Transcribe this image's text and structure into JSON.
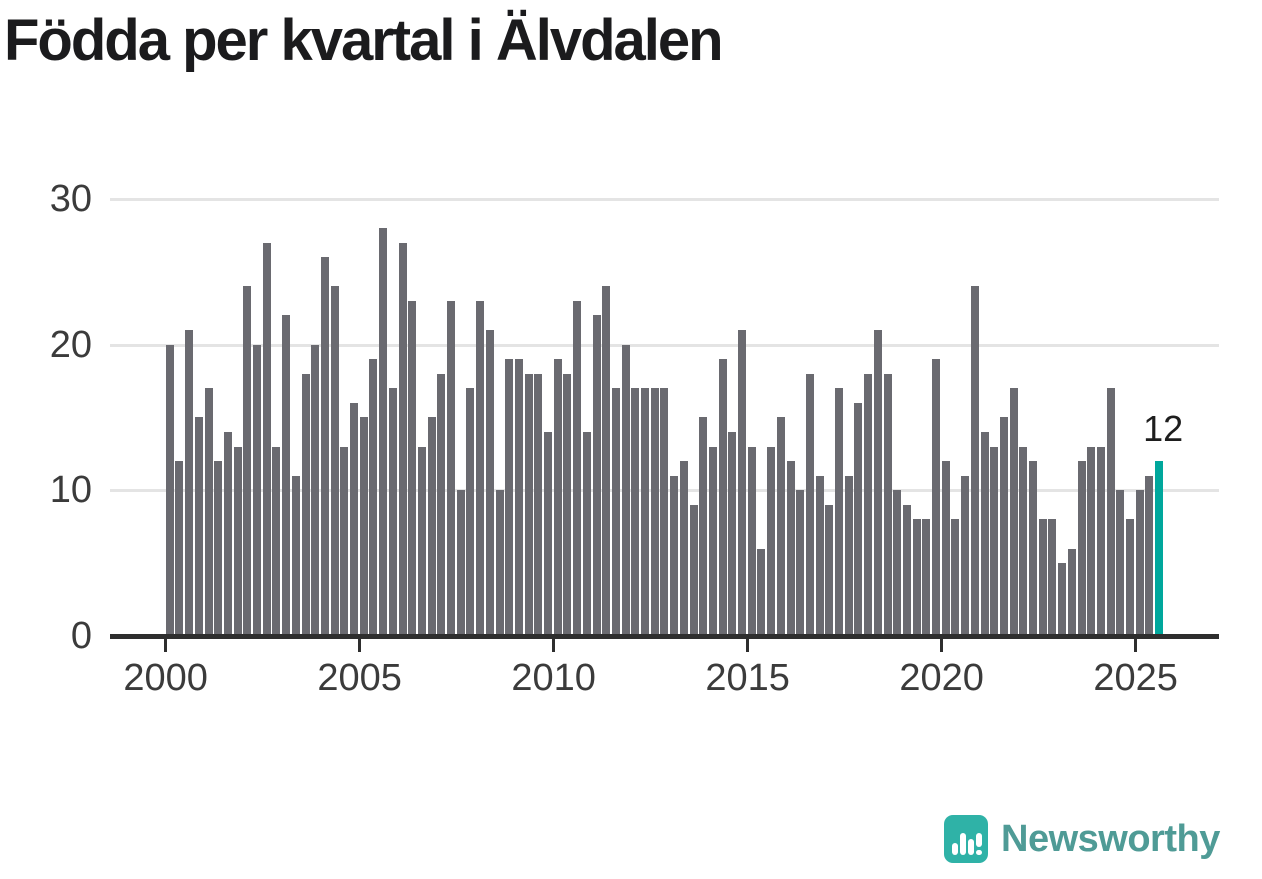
{
  "title": "Födda per kvartal i Älvdalen",
  "chart_data": {
    "type": "bar",
    "title": "Födda per kvartal i Älvdalen",
    "x_unit": "quarter",
    "quarters_start": "2000-Q1",
    "quarters_end": "2025-Q3",
    "ylim": [
      0,
      30
    ],
    "grid": "horizontal",
    "legend": "none",
    "y_gridlines": [
      10,
      20,
      30
    ],
    "y_ticks": [
      {
        "label": "30",
        "value": 30
      },
      {
        "label": "20",
        "value": 20
      },
      {
        "label": "10",
        "value": 10
      },
      {
        "label": "0",
        "value": 0
      }
    ],
    "x_ticks": [
      {
        "label": "2000",
        "quarter_index": 0
      },
      {
        "label": "2005",
        "quarter_index": 20
      },
      {
        "label": "2010",
        "quarter_index": 40
      },
      {
        "label": "2015",
        "quarter_index": 60
      },
      {
        "label": "2020",
        "quarter_index": 80
      },
      {
        "label": "2025",
        "quarter_index": 100
      }
    ],
    "values": [
      20,
      12,
      21,
      15,
      17,
      12,
      14,
      13,
      24,
      20,
      27,
      13,
      22,
      11,
      18,
      20,
      26,
      24,
      13,
      16,
      15,
      19,
      28,
      17,
      27,
      23,
      13,
      15,
      18,
      23,
      10,
      17,
      23,
      21,
      10,
      19,
      19,
      18,
      18,
      14,
      19,
      18,
      23,
      14,
      22,
      24,
      17,
      20,
      17,
      17,
      17,
      17,
      11,
      12,
      9,
      15,
      13,
      19,
      14,
      21,
      13,
      6,
      13,
      15,
      12,
      10,
      18,
      11,
      9,
      17,
      11,
      16,
      18,
      21,
      18,
      10,
      9,
      8,
      8,
      19,
      12,
      8,
      11,
      24,
      14,
      13,
      15,
      17,
      13,
      12,
      8,
      8,
      5,
      6,
      12,
      13,
      13,
      17,
      10,
      8,
      10,
      11,
      12
    ],
    "highlight_index": 102,
    "bar_color": "#6a6a70",
    "highlight_color": "#00a79c",
    "annotation": {
      "text": "12",
      "target": "last-bar"
    }
  },
  "branding": {
    "text": "Newsworthy",
    "icon": "bar-chart-logo-icon",
    "square_color": "#2fb2a7",
    "text_color": "#4f9b96"
  }
}
